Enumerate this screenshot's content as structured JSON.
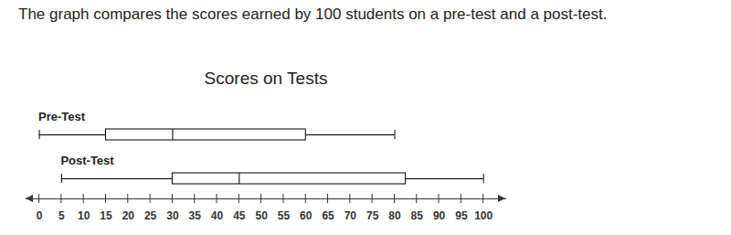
{
  "chart_data": {
    "type": "box",
    "annotation": "The graph compares the scores earned by 100 students on a pre-test and a post-test.",
    "title": "Scores on Tests",
    "categories": [
      "Pre-Test",
      "Post-Test"
    ],
    "boxes": [
      {
        "name": "Pre-Test",
        "min": 0,
        "q1": 15,
        "median": 30,
        "q3": 60,
        "max": 80
      },
      {
        "name": "Post-Test",
        "min": 5,
        "q1": 30,
        "median": 45,
        "q3": 82.5,
        "max": 100
      }
    ],
    "color": "#000000",
    "xlim": [
      -3,
      105
    ],
    "xticks": [
      0,
      5,
      10,
      15,
      20,
      25,
      30,
      35,
      40,
      45,
      50,
      55,
      60,
      65,
      70,
      75,
      80,
      85,
      90,
      95,
      100
    ],
    "grid": false
  }
}
